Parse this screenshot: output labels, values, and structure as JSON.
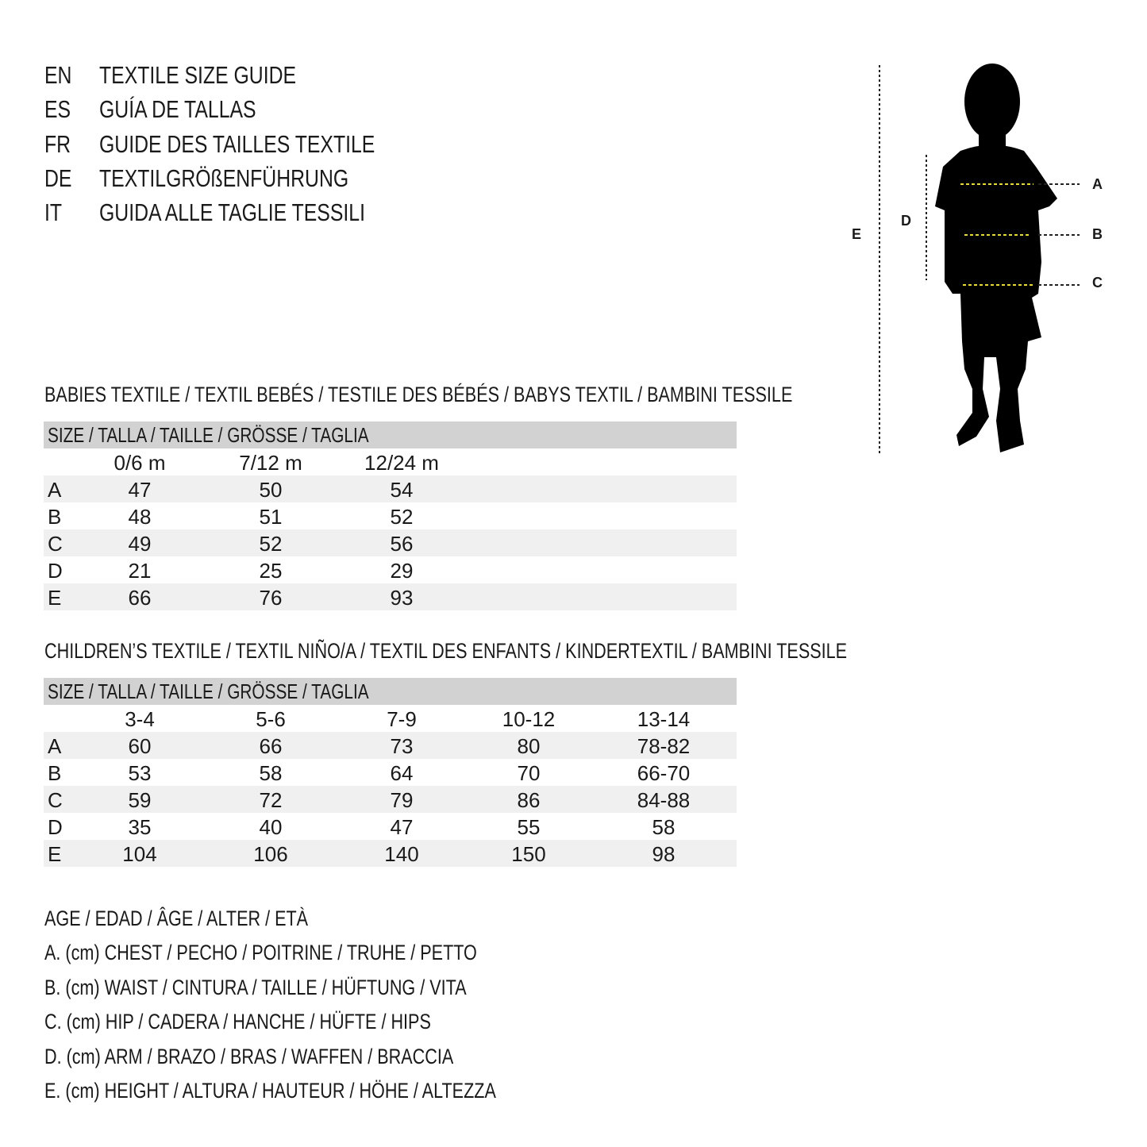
{
  "titles": [
    {
      "code": "EN",
      "text": "TEXTILE SIZE GUIDE"
    },
    {
      "code": "ES",
      "text": "GUÍA DE TALLAS"
    },
    {
      "code": "FR",
      "text": "GUIDE DES TAILLES TEXTILE"
    },
    {
      "code": "DE",
      "text": "TEXTILGRÖßENFÜHRUNG"
    },
    {
      "code": "IT",
      "text": "GUIDA ALLE TAGLIE TESSILI"
    }
  ],
  "figure": {
    "labels": {
      "A": "A",
      "B": "B",
      "C": "C",
      "D": "D",
      "E": "E"
    },
    "guide_color": "#e8d83a"
  },
  "babies": {
    "title": "BABIES TEXTILE / TEXTIL BEBÉS / TESTILE DES BÉBÉS / BABYS TEXTIL / BAMBINI TESSILE",
    "header": "SIZE / TALLA / TAILLE / GRÖSSE / TAGLIA",
    "columns": [
      "0/6 m",
      "7/12 m",
      "12/24 m"
    ],
    "rows": [
      {
        "label": "A",
        "values": [
          "47",
          "50",
          "54"
        ]
      },
      {
        "label": "B",
        "values": [
          "48",
          "51",
          "52"
        ]
      },
      {
        "label": "C",
        "values": [
          "49",
          "52",
          "56"
        ]
      },
      {
        "label": "D",
        "values": [
          "21",
          "25",
          "29"
        ]
      },
      {
        "label": "E",
        "values": [
          "66",
          "76",
          "93"
        ]
      }
    ]
  },
  "children": {
    "title": "CHILDREN’S TEXTILE / TEXTIL NIÑO/A / TEXTIL DES ENFANTS / KINDERTEXTIL / BAMBINI TESSILE",
    "header": "SIZE / TALLA / TAILLE / GRÖSSE / TAGLIA",
    "columns": [
      "3-4",
      "5-6",
      "7-9",
      "10-12",
      "13-14"
    ],
    "rows": [
      {
        "label": "A",
        "values": [
          "60",
          "66",
          "73",
          "80",
          "78-82"
        ]
      },
      {
        "label": "B",
        "values": [
          "53",
          "58",
          "64",
          "70",
          "66-70"
        ]
      },
      {
        "label": "C",
        "values": [
          "59",
          "72",
          "79",
          "86",
          "84-88"
        ]
      },
      {
        "label": "D",
        "values": [
          "35",
          "40",
          "47",
          "55",
          "58"
        ]
      },
      {
        "label": "E",
        "values": [
          "104",
          "106",
          "140",
          "150",
          "98"
        ]
      }
    ]
  },
  "legend": [
    "AGE / EDAD / ÂGE / ALTER / ETÀ",
    "A. (cm) CHEST / PECHO / POITRINE / TRUHE / PETTO",
    "B. (cm) WAIST / CINTURA / TAILLE / HÜFTUNG / VITA",
    "C. (cm) HIP / CADERA / HANCHE / HÜFTE / HIPS",
    "D. (cm) ARM / BRAZO / BRAS / WAFFEN / BRACCIA",
    "E. (cm) HEIGHT / ALTURA / HAUTEUR / HÖHE / ALTEZZA"
  ]
}
